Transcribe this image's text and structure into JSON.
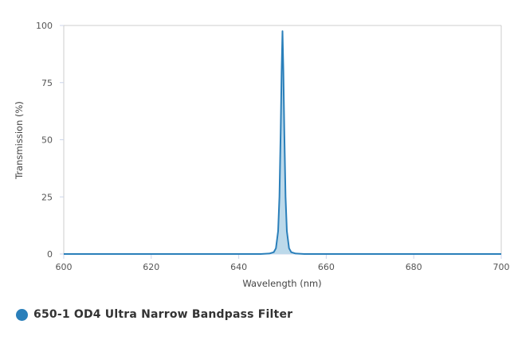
{
  "chart_data": {
    "type": "area",
    "title": "",
    "xlabel": "Wavelength (nm)",
    "ylabel": "Transmission (%)",
    "xlim": [
      600,
      700
    ],
    "ylim": [
      0,
      100
    ],
    "xticks": [
      "600",
      "620",
      "640",
      "660",
      "680",
      "700"
    ],
    "yticks": [
      "0",
      "25",
      "50",
      "75",
      "100"
    ],
    "grid": "horizontal top line only",
    "legend_position": "bottom-left",
    "series": [
      {
        "name": "650-1 OD4 Ultra Narrow Bandpass Filter",
        "color": "#2a7fba",
        "fill": "#bcd9ea",
        "x": [
          600,
          645,
          647,
          648,
          648.5,
          649,
          649.3,
          649.6,
          649.8,
          650,
          650.2,
          650.4,
          650.7,
          651,
          651.5,
          652,
          653,
          655,
          700
        ],
        "y": [
          0,
          0,
          0.2,
          0.8,
          2.5,
          10,
          25,
          55,
          80,
          97.5,
          80,
          55,
          25,
          10,
          2.5,
          0.8,
          0.2,
          0,
          0
        ]
      }
    ]
  }
}
